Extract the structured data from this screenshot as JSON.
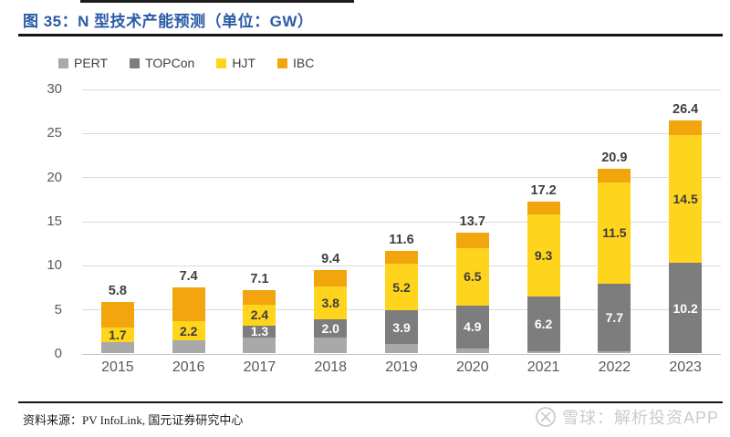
{
  "title": "图 35：N 型技术产能预测（单位：GW）",
  "source": "资料来源：PV InfoLink, 国元证券研究中心",
  "watermark": {
    "text": "雪球：解析投资APP",
    "logo": "xueqiu-snowball-logo",
    "color": "#cbcbcb"
  },
  "colors": {
    "title_blue": "#2a5ba6",
    "axis_text": "#595959",
    "gridline": "#dadada",
    "total_label": "#3f3f3f",
    "rule_black": "#141414"
  },
  "chart_data": {
    "type": "bar",
    "stacked": true,
    "unit": "GW",
    "title": "N 型技术产能预测（单位：GW）",
    "categories": [
      "2015",
      "2016",
      "2017",
      "2018",
      "2019",
      "2020",
      "2021",
      "2022",
      "2023"
    ],
    "series": [
      {
        "name": "PERT",
        "color": "#a9a9a9",
        "label_color": "#ffffff",
        "show_labels": false,
        "values": [
          1.2,
          1.4,
          1.8,
          1.8,
          1.0,
          0.5,
          0.2,
          0.2,
          0
        ]
      },
      {
        "name": "TOPCon",
        "color": "#7d7d7d",
        "label_color": "#ffffff",
        "show_labels": true,
        "values": [
          0,
          0,
          1.3,
          2.0,
          3.9,
          4.9,
          6.2,
          7.7,
          10.2
        ]
      },
      {
        "name": "HJT",
        "color": "#ffd41c",
        "label_color": "#3c3c3c",
        "show_labels": true,
        "values": [
          1.7,
          2.2,
          2.4,
          3.8,
          5.2,
          6.5,
          9.3,
          11.5,
          14.5
        ]
      },
      {
        "name": "IBC",
        "color": "#f2a50c",
        "label_color": "#3c3c3c",
        "show_labels": false,
        "values": [
          2.9,
          3.8,
          1.6,
          1.8,
          1.5,
          1.8,
          1.5,
          1.5,
          1.7
        ]
      }
    ],
    "totals": [
      5.8,
      7.4,
      7.1,
      9.4,
      11.6,
      13.7,
      17.2,
      20.9,
      26.4
    ],
    "unlabeled_segments_estimated_from_bar_heights": [
      "PERT",
      "IBC"
    ],
    "ylim": [
      0,
      30
    ],
    "yticks": [
      0,
      5,
      10,
      15,
      20,
      25,
      30
    ],
    "grid": true,
    "legend_position": "top-left"
  }
}
